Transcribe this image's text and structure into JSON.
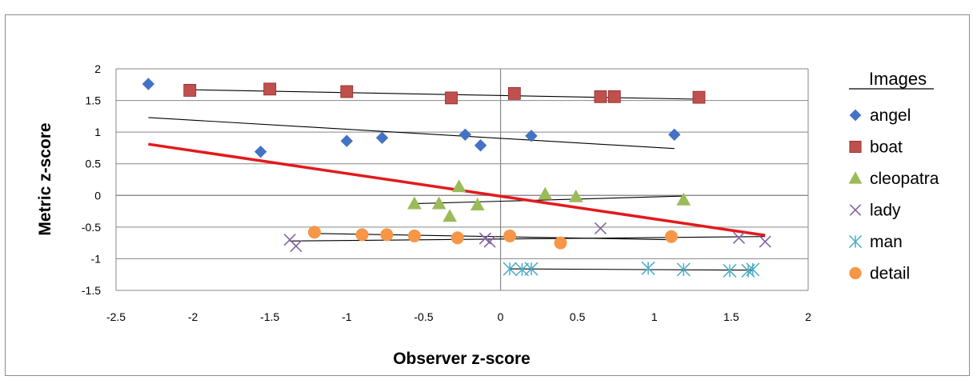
{
  "chart_data": {
    "type": "scatter",
    "title": "",
    "xlabel": "Observer z-score",
    "ylabel": "Metric z-score",
    "xlim": [
      -2.5,
      2
    ],
    "ylim": [
      -1.5,
      2
    ],
    "xticks": [
      -2.5,
      -2,
      -1.5,
      -1,
      -0.5,
      0,
      0.5,
      1,
      1.5,
      2
    ],
    "yticks": [
      -1.5,
      -1,
      -0.5,
      0,
      0.5,
      1,
      1.5,
      2
    ],
    "xtick_labels": [
      "-2.5",
      "-2",
      "-1.5",
      "-1",
      "-0.5",
      "0",
      "0.5",
      "1",
      "1.5",
      "2"
    ],
    "ytick_labels": [
      "-1.5",
      "-1",
      "-0.5",
      "0",
      "0.5",
      "1",
      "1.5",
      "2"
    ],
    "grid": "horizontal",
    "legend": {
      "title": "Images",
      "position": "right"
    },
    "series": [
      {
        "name": "angel",
        "marker": "diamond",
        "color": "#4472c4",
        "points": [
          [
            -2.29,
            1.76
          ],
          [
            -1.56,
            0.69
          ],
          [
            -1.0,
            0.86
          ],
          [
            -0.77,
            0.91
          ],
          [
            -0.23,
            0.96
          ],
          [
            -0.13,
            0.79
          ],
          [
            0.2,
            0.94
          ],
          [
            1.13,
            0.96
          ]
        ],
        "fit": [
          [
            -2.29,
            1.23
          ],
          [
            1.13,
            0.74
          ]
        ]
      },
      {
        "name": "boat",
        "marker": "square",
        "color": "#c0504d",
        "points": [
          [
            -2.02,
            1.66
          ],
          [
            -1.5,
            1.68
          ],
          [
            -1.0,
            1.64
          ],
          [
            -0.32,
            1.54
          ],
          [
            0.09,
            1.61
          ],
          [
            0.65,
            1.56
          ],
          [
            0.74,
            1.56
          ],
          [
            1.29,
            1.55
          ]
        ],
        "fit": [
          [
            -2.02,
            1.67
          ],
          [
            1.29,
            1.52
          ]
        ]
      },
      {
        "name": "cleopatra",
        "marker": "triangle",
        "color": "#9bbb59",
        "points": [
          [
            -0.56,
            -0.13
          ],
          [
            -0.4,
            -0.13
          ],
          [
            -0.33,
            -0.33
          ],
          [
            -0.27,
            0.14
          ],
          [
            -0.15,
            -0.15
          ],
          [
            0.29,
            0.02
          ],
          [
            0.49,
            -0.02
          ],
          [
            1.19,
            -0.07
          ]
        ],
        "fit": [
          [
            -0.56,
            -0.13
          ],
          [
            1.19,
            -0.01
          ]
        ]
      },
      {
        "name": "lady",
        "marker": "x",
        "color": "#8064a2",
        "points": [
          [
            -1.37,
            -0.7
          ],
          [
            -1.33,
            -0.8
          ],
          [
            -0.1,
            -0.68
          ],
          [
            -0.07,
            -0.73
          ],
          [
            0.65,
            -0.52
          ],
          [
            1.55,
            -0.67
          ],
          [
            1.72,
            -0.73
          ]
        ],
        "fit": [
          [
            -1.37,
            -0.72
          ],
          [
            1.72,
            -0.65
          ]
        ]
      },
      {
        "name": "man",
        "marker": "asterisk",
        "color": "#4bacc6",
        "points": [
          [
            0.06,
            -1.16
          ],
          [
            0.14,
            -1.17
          ],
          [
            0.2,
            -1.16
          ],
          [
            0.96,
            -1.15
          ],
          [
            1.19,
            -1.17
          ],
          [
            1.49,
            -1.19
          ],
          [
            1.61,
            -1.19
          ],
          [
            1.64,
            -1.17
          ]
        ],
        "fit": [
          [
            0.06,
            -1.16
          ],
          [
            1.64,
            -1.18
          ]
        ]
      },
      {
        "name": "detail",
        "marker": "circle",
        "color": "#f79646",
        "points": [
          [
            -1.21,
            -0.58
          ],
          [
            -0.9,
            -0.62
          ],
          [
            -0.74,
            -0.62
          ],
          [
            -0.56,
            -0.64
          ],
          [
            -0.28,
            -0.67
          ],
          [
            0.06,
            -0.64
          ],
          [
            0.39,
            -0.75
          ],
          [
            1.11,
            -0.65
          ]
        ],
        "fit": [
          [
            -1.21,
            -0.6
          ],
          [
            1.11,
            -0.7
          ]
        ]
      }
    ],
    "overall_fit": {
      "color": "#e31a1c",
      "line": [
        [
          -2.29,
          0.81
        ],
        [
          1.72,
          -0.63
        ]
      ]
    }
  }
}
